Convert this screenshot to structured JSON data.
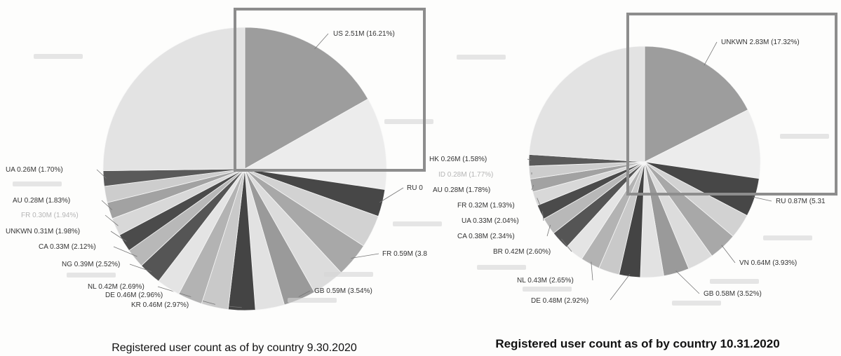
{
  "chart_data": [
    {
      "type": "pie",
      "title": "Registered user count as of by country 9.30.2020",
      "slices": [
        {
          "label": "US 2.51M (16.21%)",
          "value": 16.21,
          "color": "#9d9d9d",
          "faint": false
        },
        {
          "label": "",
          "value": 10.2,
          "color": "#ececec",
          "faint": false
        },
        {
          "label": "RU 0",
          "value": 3.0,
          "color": "#474747",
          "faint": false
        },
        {
          "label": "",
          "value": 3.6,
          "color": "#d2d2d2",
          "faint": false
        },
        {
          "label": "FR 0.59M (3.8",
          "value": 3.8,
          "color": "#a8a8a8",
          "faint": false
        },
        {
          "label": "",
          "value": 3.6,
          "color": "#dcdcdc",
          "faint": false
        },
        {
          "label": "GB 0.59M (3.54%)",
          "value": 3.54,
          "color": "#9a9a9a",
          "faint": false
        },
        {
          "label": "",
          "value": 3.2,
          "color": "#e2e2e2",
          "faint": true
        },
        {
          "label": "KR 0.46M (2.97%)",
          "value": 2.97,
          "color": "#444444",
          "faint": false
        },
        {
          "label": "DE 0.46M (2.96%)",
          "value": 2.96,
          "color": "#c9c9c9",
          "faint": false
        },
        {
          "label": "NL 0.42M (2.69%)",
          "value": 2.69,
          "color": "#b3b3b3",
          "faint": false
        },
        {
          "label": "",
          "value": 2.6,
          "color": "#e4e4e4",
          "faint": true
        },
        {
          "label": "NG 0.39M (2.52%)",
          "value": 2.52,
          "color": "#555555",
          "faint": false
        },
        {
          "label": "CA 0.33M (2.12%)",
          "value": 2.12,
          "color": "#b8b8b8",
          "faint": false
        },
        {
          "label": "UNKWN 0.31M (1.98%)",
          "value": 1.98,
          "color": "#4b4b4b",
          "faint": false
        },
        {
          "label": "FR 0.30M (1.94%)",
          "value": 1.94,
          "color": "#d8d8d8",
          "faint": true
        },
        {
          "label": "AU 0.28M (1.83%)",
          "value": 1.83,
          "color": "#a2a2a2",
          "faint": false
        },
        {
          "label": "",
          "value": 1.8,
          "color": "#cdcdcd",
          "faint": true
        },
        {
          "label": "UA 0.26M (1.70%)",
          "value": 1.7,
          "color": "#5a5a5a",
          "faint": false
        },
        {
          "label": "",
          "value": 24.35,
          "color": "#e3e3e3",
          "faint": true
        }
      ]
    },
    {
      "type": "pie",
      "title": "Registered user count as of by country 10.31.2020",
      "slices": [
        {
          "label": "UNKWN 2.83M (17.32%)",
          "value": 17.32,
          "color": "#9d9d9d",
          "faint": false
        },
        {
          "label": "",
          "value": 9.6,
          "color": "#ececec",
          "faint": true
        },
        {
          "label": "RU 0.87M (5.31",
          "value": 5.31,
          "color": "#474747",
          "faint": false
        },
        {
          "label": "",
          "value": 3.4,
          "color": "#d2d2d2",
          "faint": true
        },
        {
          "label": "VN 0.64M (3.93%)",
          "value": 3.93,
          "color": "#a8a8a8",
          "faint": false
        },
        {
          "label": "",
          "value": 3.6,
          "color": "#dcdcdc",
          "faint": true
        },
        {
          "label": "GB 0.58M (3.52%)",
          "value": 3.52,
          "color": "#9a9a9a",
          "faint": false
        },
        {
          "label": "",
          "value": 3.2,
          "color": "#e2e2e2",
          "faint": true
        },
        {
          "label": "DE 0.48M (2.92%)",
          "value": 2.92,
          "color": "#444444",
          "faint": false
        },
        {
          "label": "",
          "value": 2.87,
          "color": "#c9c9c9",
          "faint": false
        },
        {
          "label": "NL 0.43M (2.65%)",
          "value": 2.65,
          "color": "#b3b3b3",
          "faint": false
        },
        {
          "label": "",
          "value": 2.6,
          "color": "#e4e4e4",
          "faint": true
        },
        {
          "label": "BR 0.42M (2.60%)",
          "value": 2.6,
          "color": "#555555",
          "faint": false
        },
        {
          "label": "CA 0.38M (2.34%)",
          "value": 2.34,
          "color": "#b8b8b8",
          "faint": false
        },
        {
          "label": "UA 0.33M (2.04%)",
          "value": 2.04,
          "color": "#4b4b4b",
          "faint": false
        },
        {
          "label": "FR 0.32M (1.93%)",
          "value": 1.93,
          "color": "#d8d8d8",
          "faint": false
        },
        {
          "label": "AU 0.28M (1.78%)",
          "value": 1.78,
          "color": "#a2a2a2",
          "faint": false
        },
        {
          "label": "ID 0.28M (1.77%)",
          "value": 1.77,
          "color": "#cdcdcd",
          "faint": true
        },
        {
          "label": "HK 0.26M (1.58%)",
          "value": 1.58,
          "color": "#5a5a5a",
          "faint": false
        },
        {
          "label": "",
          "value": 23.64,
          "color": "#e3e3e3",
          "faint": true
        }
      ]
    }
  ]
}
